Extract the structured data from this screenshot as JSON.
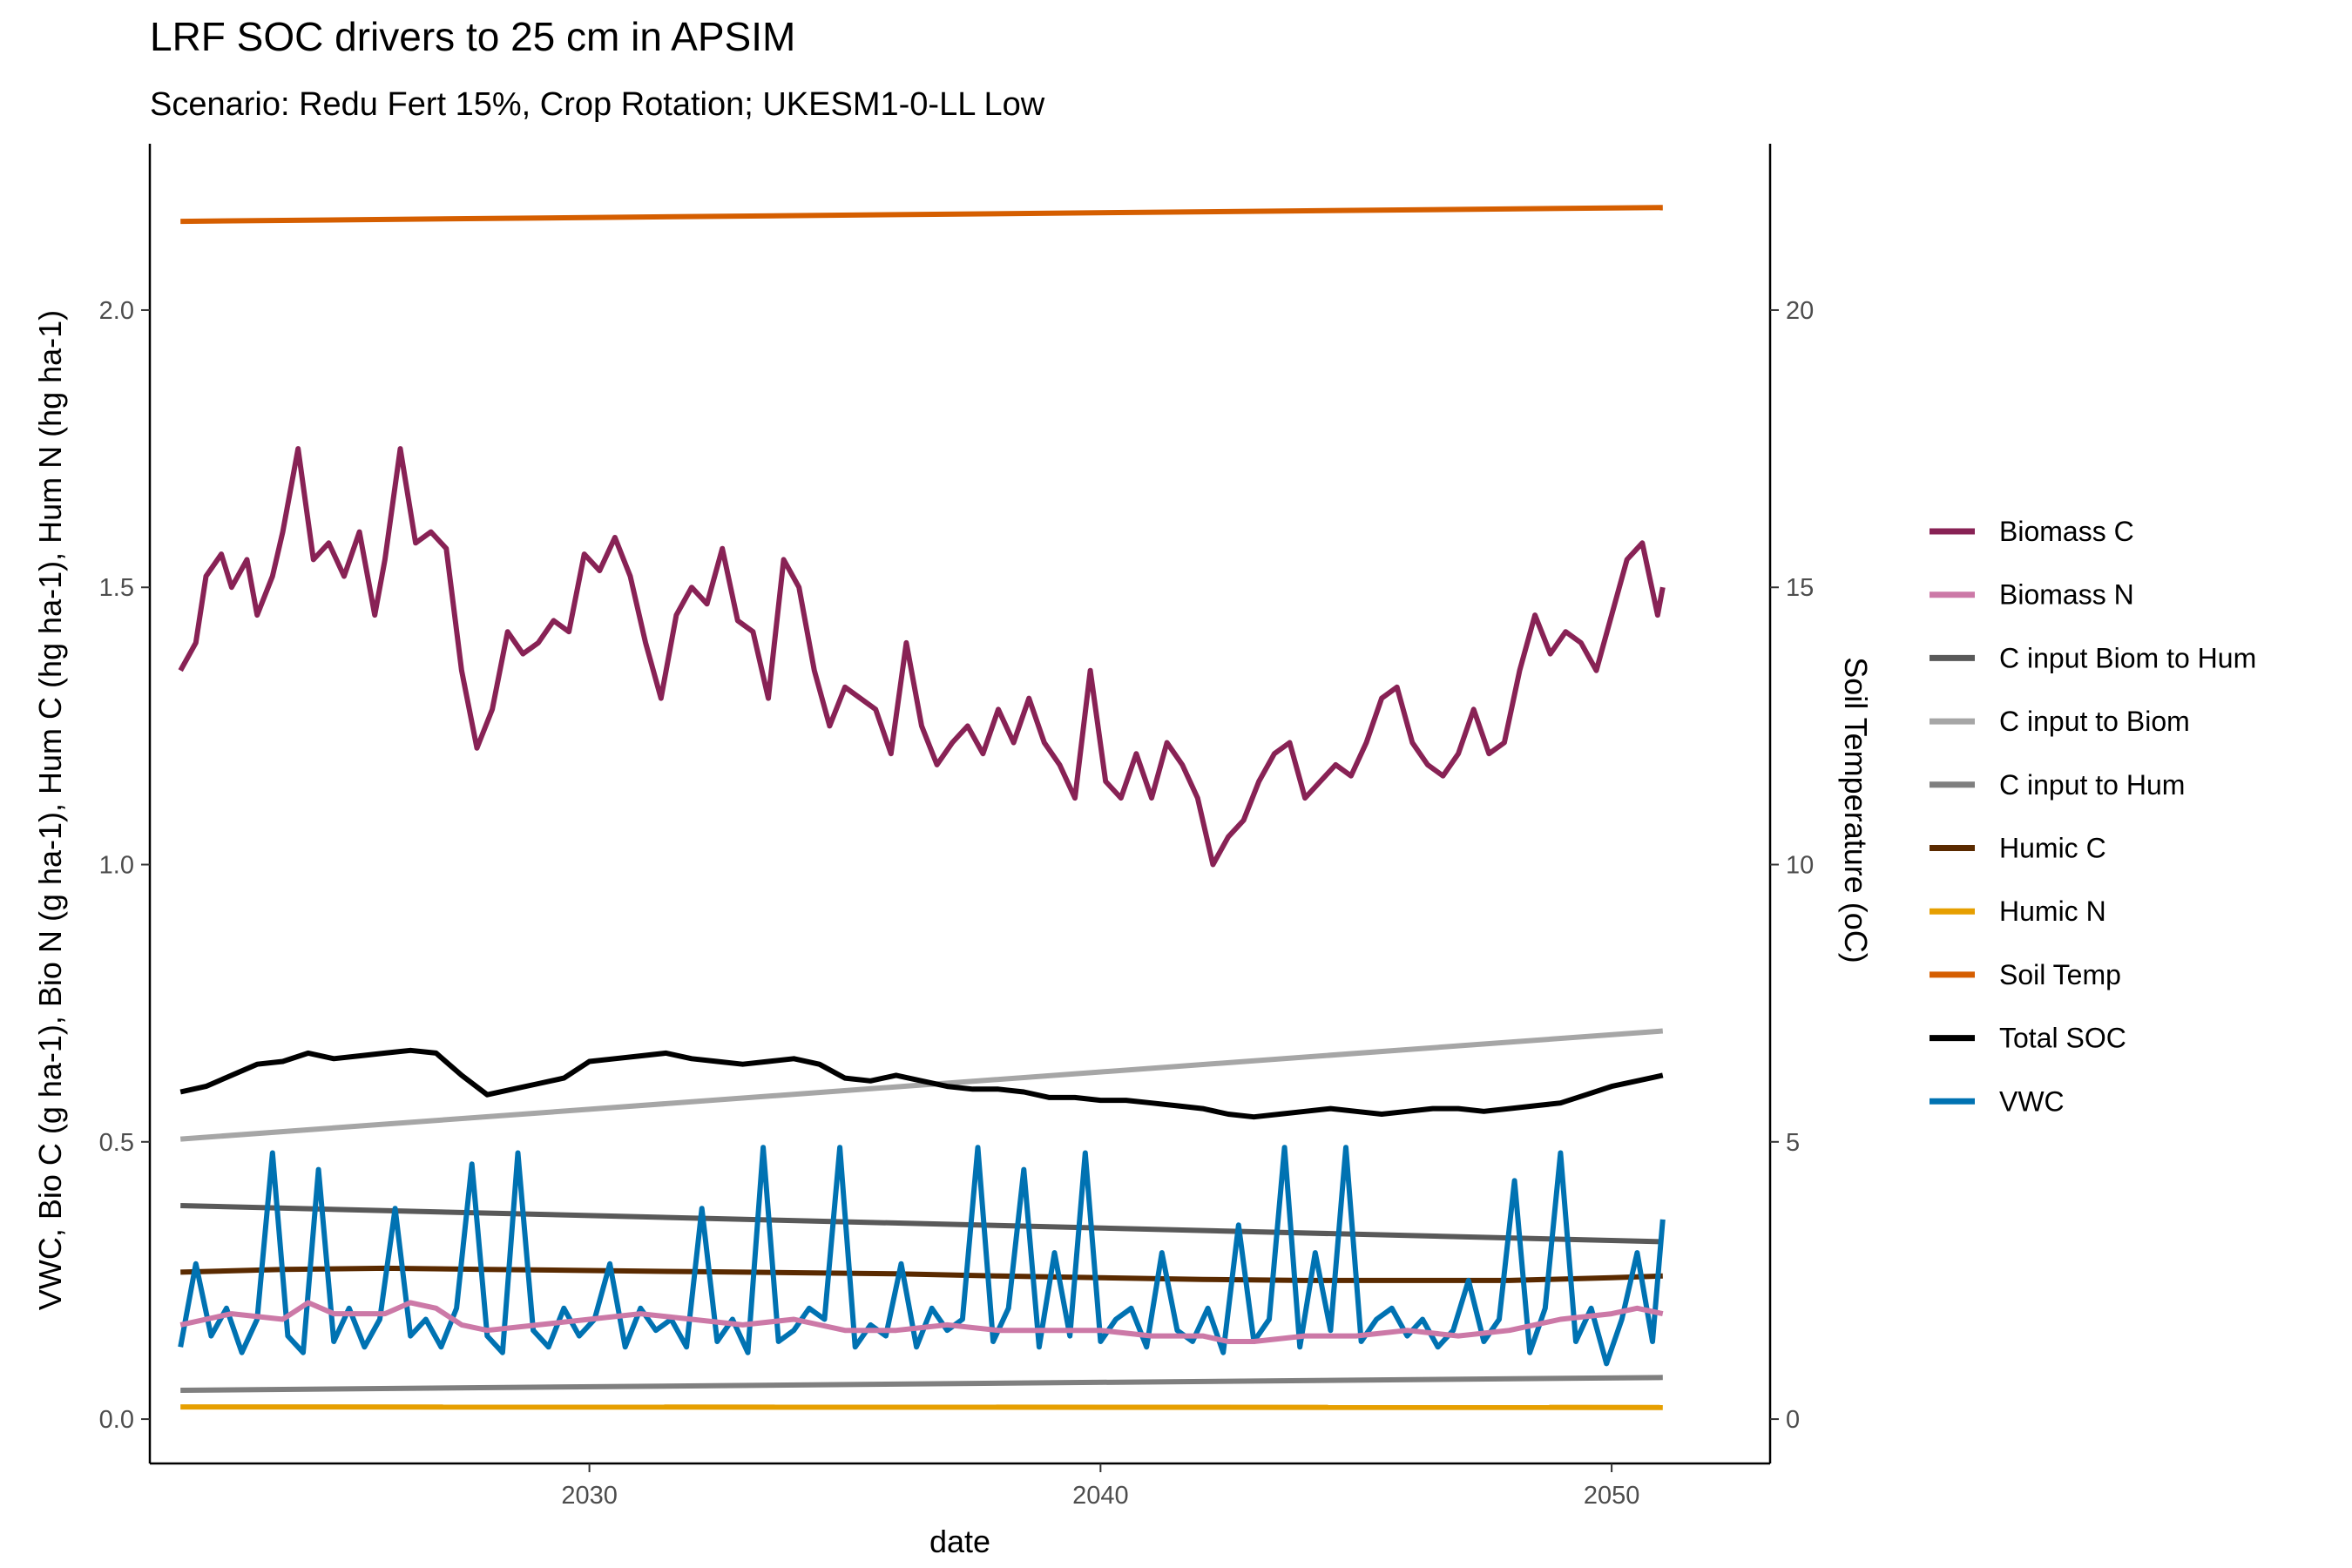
{
  "chart_data": {
    "type": "line",
    "title": "LRF SOC drivers to 25 cm in APSIM",
    "subtitle": "Scenario: Redu Fert 15%, Crop Rotation; UKESM1-0-LL Low",
    "xlabel": "date",
    "ylabel_left": "VWC, Bio C (g ha-1), Bio N (g ha-1), Hum C (hg ha-1), Hum N (hg ha-1)",
    "ylabel_right": "Soil Temperature (oC)",
    "xlim": [
      2021.4,
      2053.1
    ],
    "ylim_left": [
      -0.08,
      2.3
    ],
    "ylim_right": [
      -0.8,
      23
    ],
    "x_ticks": [
      2030,
      2040,
      2050
    ],
    "y_ticks_left": [
      "0.0",
      "0.5",
      "1.0",
      "1.5",
      "2.0"
    ],
    "y_ticks_right": [
      "0",
      "5",
      "10",
      "15",
      "20"
    ],
    "grid": false,
    "legend_position": "right",
    "series": [
      {
        "name": "Biomass C",
        "color": "#882255",
        "axis": "left",
        "x": [
          2022.0,
          2022.3,
          2022.5,
          2022.8,
          2023.0,
          2023.3,
          2023.5,
          2023.8,
          2024.0,
          2024.3,
          2024.6,
          2024.9,
          2025.2,
          2025.5,
          2025.8,
          2026.0,
          2026.3,
          2026.6,
          2026.9,
          2027.2,
          2027.5,
          2027.8,
          2028.1,
          2028.4,
          2028.7,
          2029.0,
          2029.3,
          2029.6,
          2029.9,
          2030.2,
          2030.5,
          2030.8,
          2031.1,
          2031.4,
          2031.7,
          2032.0,
          2032.3,
          2032.6,
          2032.9,
          2033.2,
          2033.5,
          2033.8,
          2034.1,
          2034.4,
          2034.7,
          2035.0,
          2035.3,
          2035.6,
          2035.9,
          2036.2,
          2036.5,
          2036.8,
          2037.1,
          2037.4,
          2037.7,
          2038.0,
          2038.3,
          2038.6,
          2038.9,
          2039.2,
          2039.5,
          2039.8,
          2040.1,
          2040.4,
          2040.7,
          2041.0,
          2041.3,
          2041.6,
          2041.9,
          2042.2,
          2042.5,
          2042.8,
          2043.1,
          2043.4,
          2043.7,
          2044.0,
          2044.3,
          2044.6,
          2044.9,
          2045.2,
          2045.5,
          2045.8,
          2046.1,
          2046.4,
          2046.7,
          2047.0,
          2047.3,
          2047.6,
          2047.9,
          2048.2,
          2048.5,
          2048.8,
          2049.1,
          2049.4,
          2049.7,
          2050.0,
          2050.3,
          2050.6,
          2050.9,
          2051.0
        ],
        "y": [
          1.35,
          1.4,
          1.52,
          1.56,
          1.5,
          1.55,
          1.45,
          1.52,
          1.6,
          1.75,
          1.55,
          1.58,
          1.52,
          1.6,
          1.45,
          1.55,
          1.75,
          1.58,
          1.6,
          1.57,
          1.35,
          1.21,
          1.28,
          1.42,
          1.38,
          1.4,
          1.44,
          1.42,
          1.56,
          1.53,
          1.59,
          1.52,
          1.4,
          1.3,
          1.45,
          1.5,
          1.47,
          1.57,
          1.44,
          1.42,
          1.3,
          1.55,
          1.5,
          1.35,
          1.25,
          1.32,
          1.3,
          1.28,
          1.2,
          1.4,
          1.25,
          1.18,
          1.22,
          1.25,
          1.2,
          1.28,
          1.22,
          1.3,
          1.22,
          1.18,
          1.12,
          1.35,
          1.15,
          1.12,
          1.2,
          1.12,
          1.22,
          1.18,
          1.12,
          1.0,
          1.05,
          1.08,
          1.15,
          1.2,
          1.22,
          1.12,
          1.15,
          1.18,
          1.16,
          1.22,
          1.3,
          1.32,
          1.22,
          1.18,
          1.16,
          1.2,
          1.28,
          1.2,
          1.22,
          1.35,
          1.45,
          1.38,
          1.42,
          1.4,
          1.35,
          1.45,
          1.55,
          1.58,
          1.45,
          1.5
        ]
      },
      {
        "name": "Biomass N",
        "color": "#CC79A7",
        "axis": "left",
        "x": [
          2022.0,
          2023.0,
          2024.0,
          2024.5,
          2025.0,
          2026.0,
          2026.5,
          2027.0,
          2027.5,
          2028.0,
          2029.0,
          2030.0,
          2031.0,
          2032.0,
          2033.0,
          2034.0,
          2035.0,
          2036.0,
          2037.0,
          2038.0,
          2039.0,
          2040.0,
          2041.0,
          2042.0,
          2042.5,
          2043.0,
          2044.0,
          2045.0,
          2046.0,
          2047.0,
          2048.0,
          2049.0,
          2050.0,
          2050.5,
          2051.0
        ],
        "y": [
          0.17,
          0.19,
          0.18,
          0.21,
          0.19,
          0.19,
          0.21,
          0.2,
          0.17,
          0.16,
          0.17,
          0.18,
          0.19,
          0.18,
          0.17,
          0.18,
          0.16,
          0.16,
          0.17,
          0.16,
          0.16,
          0.16,
          0.15,
          0.15,
          0.14,
          0.14,
          0.15,
          0.15,
          0.16,
          0.15,
          0.16,
          0.18,
          0.19,
          0.2,
          0.19
        ]
      },
      {
        "name": "C input Biom to Hum",
        "color": "#595959",
        "axis": "left",
        "x": [
          2022.0,
          2051.0
        ],
        "y": [
          0.385,
          0.32
        ]
      },
      {
        "name": "C input to Biom",
        "color": "#A6A6A6",
        "axis": "left",
        "x": [
          2022.0,
          2051.0
        ],
        "y": [
          0.505,
          0.7
        ]
      },
      {
        "name": "C input to Hum",
        "color": "#7F7F7F",
        "axis": "left",
        "x": [
          2022.0,
          2051.0
        ],
        "y": [
          0.052,
          0.075
        ]
      },
      {
        "name": "Humic C",
        "color": "#5A2A00",
        "axis": "left",
        "x": [
          2022.0,
          2024.0,
          2026.0,
          2028.0,
          2030.0,
          2032.0,
          2034.0,
          2036.0,
          2038.0,
          2040.0,
          2042.0,
          2044.0,
          2046.0,
          2048.0,
          2050.0,
          2051.0
        ],
        "y": [
          0.265,
          0.27,
          0.272,
          0.27,
          0.268,
          0.266,
          0.264,
          0.262,
          0.258,
          0.255,
          0.252,
          0.25,
          0.25,
          0.25,
          0.255,
          0.258
        ]
      },
      {
        "name": "Humic N",
        "color": "#E69F00",
        "axis": "left",
        "x": [
          2022.0,
          2051.0
        ],
        "y": [
          0.022,
          0.021
        ]
      },
      {
        "name": "Soil Temp",
        "color": "#D55E00",
        "axis": "right",
        "x": [
          2022.0,
          2051.0
        ],
        "y": [
          21.6,
          21.85
        ]
      },
      {
        "name": "Total SOC",
        "color": "#000000",
        "axis": "left",
        "x": [
          2022.0,
          2022.5,
          2023.0,
          2023.5,
          2024.0,
          2024.5,
          2025.0,
          2025.5,
          2026.0,
          2026.5,
          2027.0,
          2027.5,
          2028.0,
          2028.5,
          2029.0,
          2029.5,
          2030.0,
          2030.5,
          2031.0,
          2031.5,
          2032.0,
          2032.5,
          2033.0,
          2033.5,
          2034.0,
          2034.5,
          2035.0,
          2035.5,
          2036.0,
          2036.5,
          2037.0,
          2037.5,
          2038.0,
          2038.5,
          2039.0,
          2039.5,
          2040.0,
          2040.5,
          2041.0,
          2041.5,
          2042.0,
          2042.5,
          2043.0,
          2043.5,
          2044.0,
          2044.5,
          2045.0,
          2045.5,
          2046.0,
          2046.5,
          2047.0,
          2047.5,
          2048.0,
          2048.5,
          2049.0,
          2049.5,
          2050.0,
          2050.5,
          2051.0
        ],
        "y": [
          0.59,
          0.6,
          0.62,
          0.64,
          0.645,
          0.66,
          0.65,
          0.655,
          0.66,
          0.665,
          0.66,
          0.62,
          0.585,
          0.595,
          0.605,
          0.615,
          0.645,
          0.65,
          0.655,
          0.66,
          0.65,
          0.645,
          0.64,
          0.645,
          0.65,
          0.64,
          0.615,
          0.61,
          0.62,
          0.61,
          0.6,
          0.595,
          0.595,
          0.59,
          0.58,
          0.58,
          0.575,
          0.575,
          0.57,
          0.565,
          0.56,
          0.55,
          0.545,
          0.55,
          0.555,
          0.56,
          0.555,
          0.55,
          0.555,
          0.56,
          0.56,
          0.555,
          0.56,
          0.565,
          0.57,
          0.585,
          0.6,
          0.61,
          0.62
        ]
      },
      {
        "name": "VWC",
        "color": "#0072B2",
        "axis": "left",
        "x": [
          2022.0,
          2022.3,
          2022.6,
          2022.9,
          2023.2,
          2023.5,
          2023.8,
          2024.1,
          2024.4,
          2024.7,
          2025.0,
          2025.3,
          2025.6,
          2025.9,
          2026.2,
          2026.5,
          2026.8,
          2027.1,
          2027.4,
          2027.7,
          2028.0,
          2028.3,
          2028.6,
          2028.9,
          2029.2,
          2029.5,
          2029.8,
          2030.1,
          2030.4,
          2030.7,
          2031.0,
          2031.3,
          2031.6,
          2031.9,
          2032.2,
          2032.5,
          2032.8,
          2033.1,
          2033.4,
          2033.7,
          2034.0,
          2034.3,
          2034.6,
          2034.9,
          2035.2,
          2035.5,
          2035.8,
          2036.1,
          2036.4,
          2036.7,
          2037.0,
          2037.3,
          2037.6,
          2037.9,
          2038.2,
          2038.5,
          2038.8,
          2039.1,
          2039.4,
          2039.7,
          2040.0,
          2040.3,
          2040.6,
          2040.9,
          2041.2,
          2041.5,
          2041.8,
          2042.1,
          2042.4,
          2042.7,
          2043.0,
          2043.3,
          2043.6,
          2043.9,
          2044.2,
          2044.5,
          2044.8,
          2045.1,
          2045.4,
          2045.7,
          2046.0,
          2046.3,
          2046.6,
          2046.9,
          2047.2,
          2047.5,
          2047.8,
          2048.1,
          2048.4,
          2048.7,
          2049.0,
          2049.3,
          2049.6,
          2049.9,
          2050.2,
          2050.5,
          2050.8,
          2051.0
        ],
        "y": [
          0.13,
          0.28,
          0.15,
          0.2,
          0.12,
          0.18,
          0.48,
          0.15,
          0.12,
          0.45,
          0.14,
          0.2,
          0.13,
          0.18,
          0.38,
          0.15,
          0.18,
          0.13,
          0.2,
          0.46,
          0.15,
          0.12,
          0.48,
          0.16,
          0.13,
          0.2,
          0.15,
          0.18,
          0.28,
          0.13,
          0.2,
          0.16,
          0.18,
          0.13,
          0.38,
          0.14,
          0.18,
          0.12,
          0.49,
          0.14,
          0.16,
          0.2,
          0.18,
          0.49,
          0.13,
          0.17,
          0.15,
          0.28,
          0.13,
          0.2,
          0.16,
          0.18,
          0.49,
          0.14,
          0.2,
          0.45,
          0.13,
          0.3,
          0.15,
          0.48,
          0.14,
          0.18,
          0.2,
          0.13,
          0.3,
          0.16,
          0.14,
          0.2,
          0.12,
          0.35,
          0.14,
          0.18,
          0.49,
          0.13,
          0.3,
          0.16,
          0.49,
          0.14,
          0.18,
          0.2,
          0.15,
          0.18,
          0.13,
          0.16,
          0.25,
          0.14,
          0.18,
          0.43,
          0.12,
          0.2,
          0.48,
          0.14,
          0.2,
          0.1,
          0.18,
          0.3,
          0.14,
          0.36
        ]
      }
    ]
  }
}
